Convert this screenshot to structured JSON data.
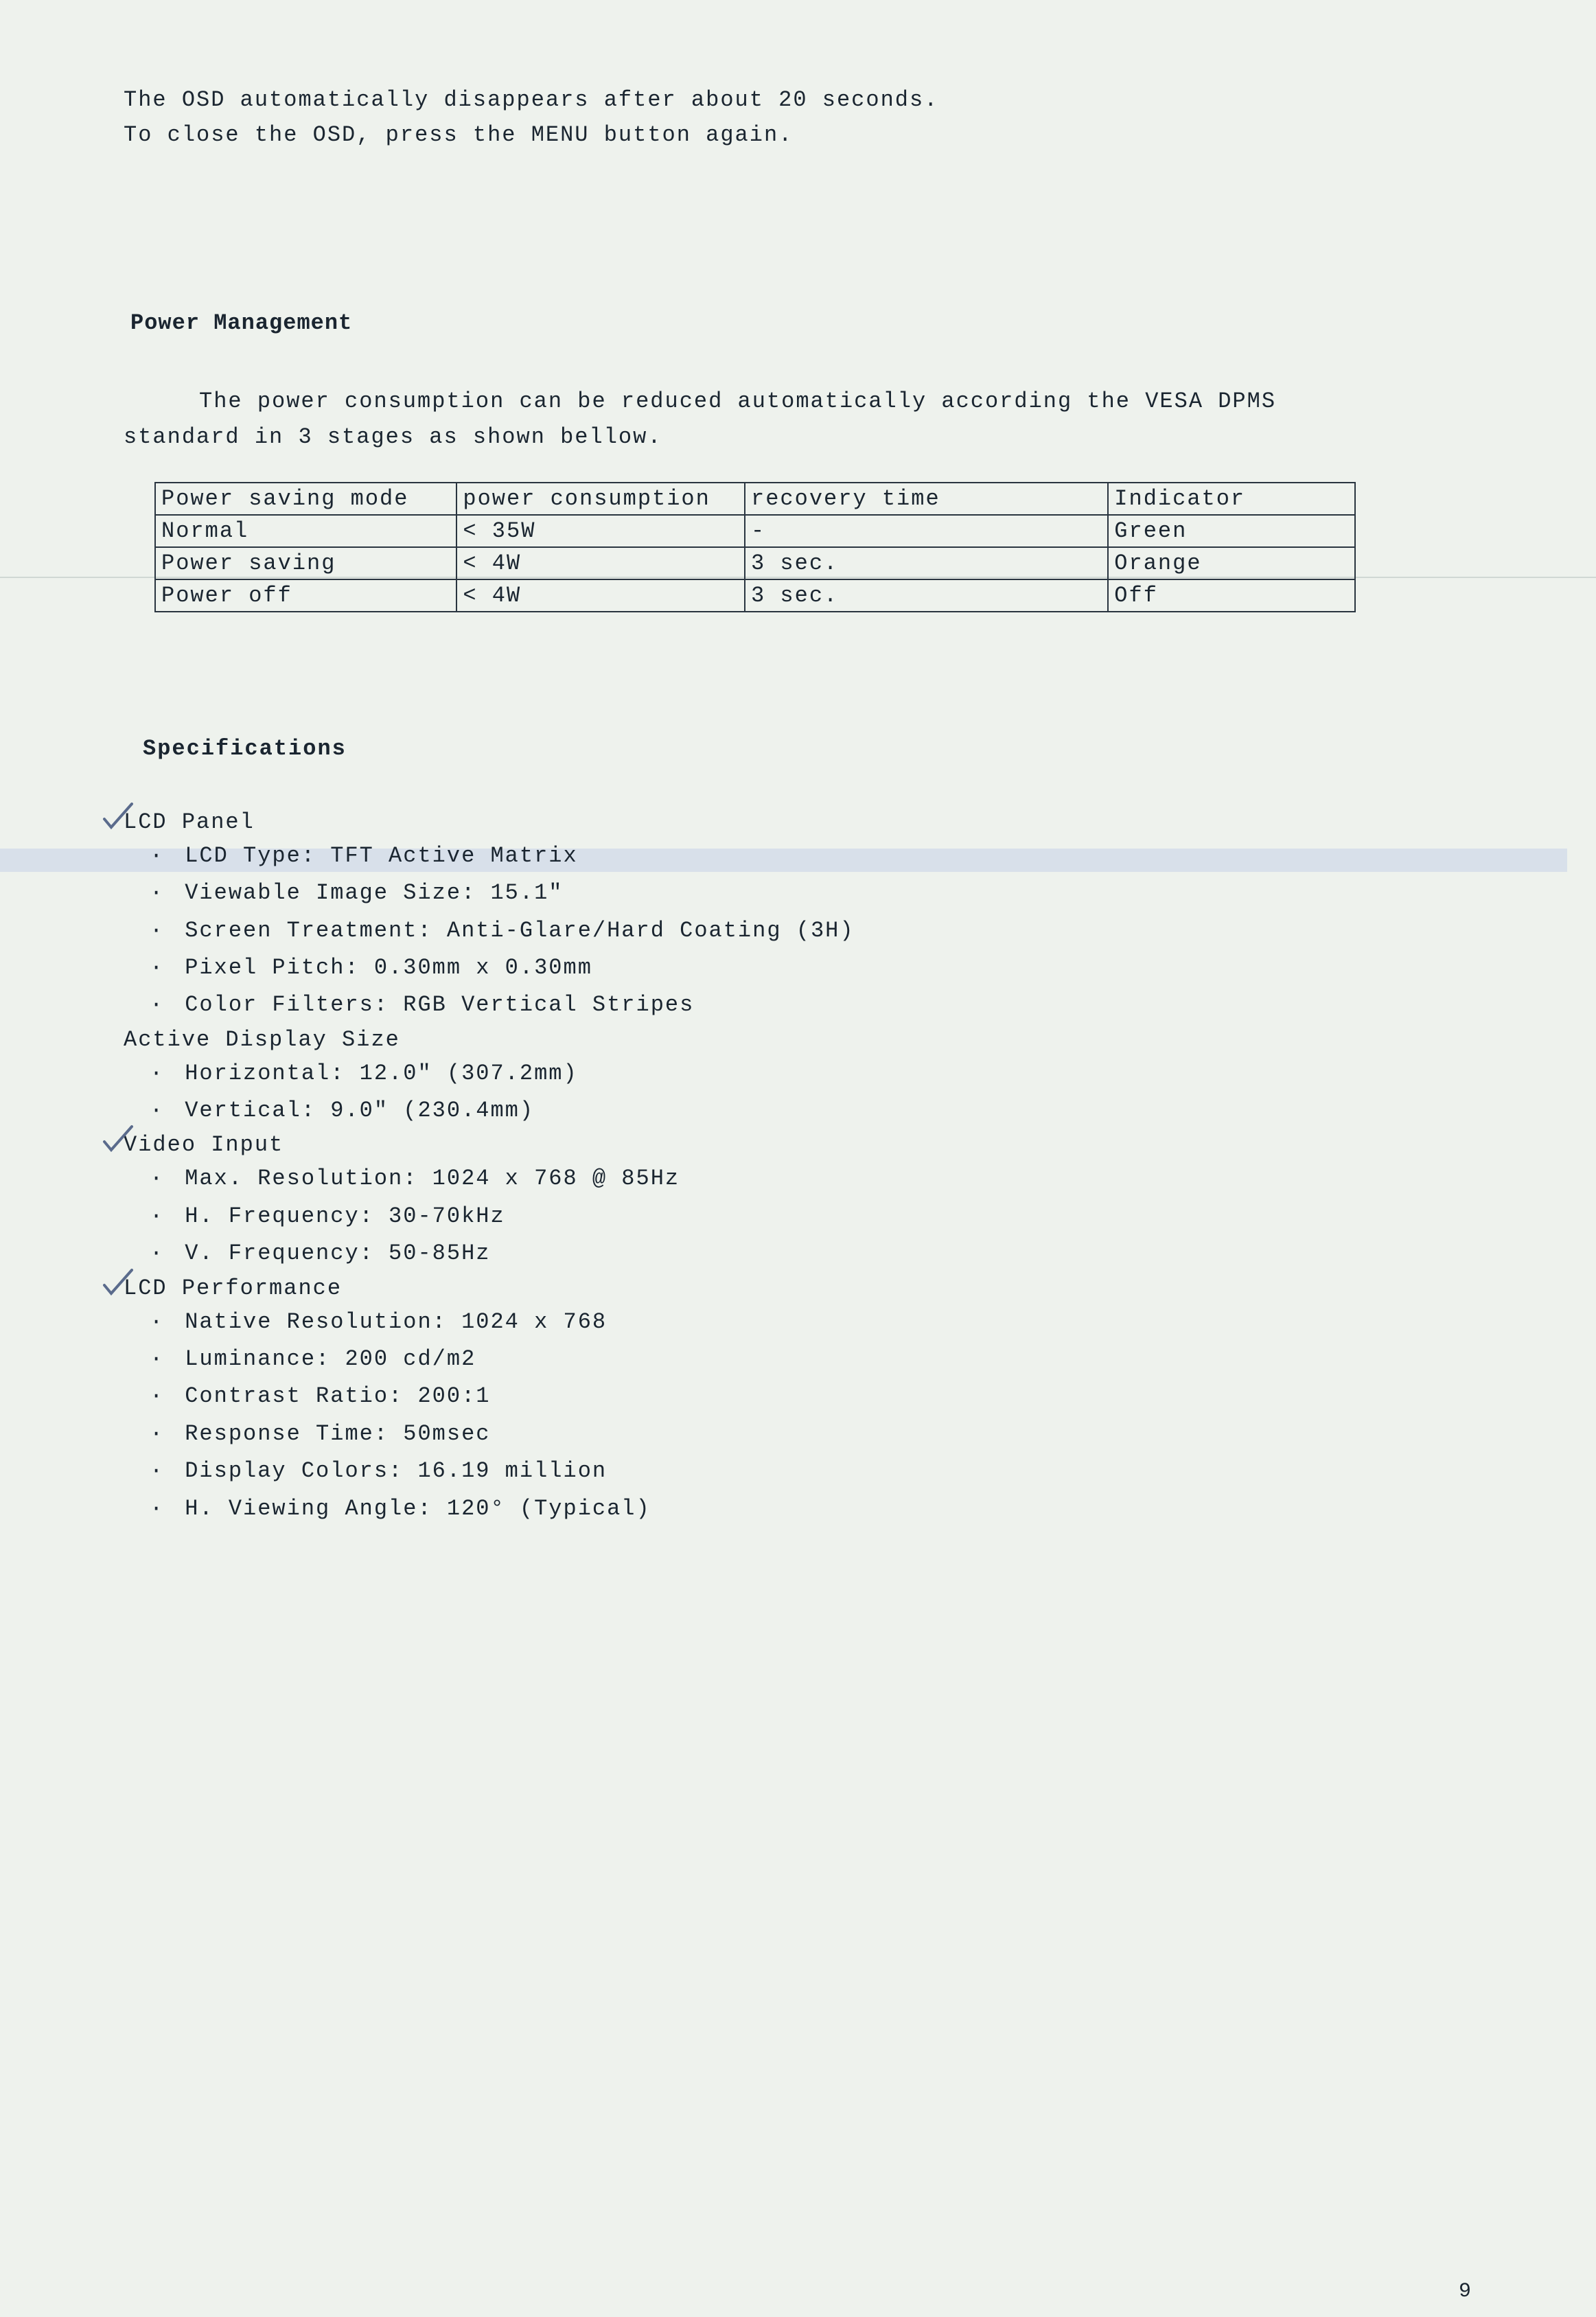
{
  "intro": {
    "line1": "The OSD automatically disappears after about 20 seconds.",
    "line2": "To close the OSD, press the MENU button again."
  },
  "power_management": {
    "heading": "Power Management",
    "description_line1": "The power consumption can be reduced automatically according the VESA DPMS",
    "description_line2": "standard in 3 stages as shown bellow.",
    "table": {
      "columns": [
        "Power saving mode",
        "power consumption",
        "recovery time",
        "Indicator"
      ],
      "col_widths": [
        "440px",
        "420px",
        "530px",
        "360px"
      ],
      "rows": [
        [
          "Normal",
          "< 35W",
          "-",
          "Green"
        ],
        [
          "Power saving",
          "< 4W",
          "3 sec.",
          "Orange"
        ],
        [
          "Power off",
          "< 4W",
          "3 sec.",
          "Off"
        ]
      ],
      "border_color": "#2a3540",
      "border_width": 2,
      "font_size": 32
    }
  },
  "specifications": {
    "heading": "Specifications",
    "sections": [
      {
        "title": "LCD Panel",
        "checked": true,
        "items": [
          "LCD Type: TFT Active Matrix",
          "Viewable Image Size: 15.1\"",
          "Screen Treatment: Anti-Glare/Hard Coating (3H)",
          "Pixel Pitch: 0.30mm x 0.30mm",
          "Color Filters: RGB Vertical Stripes"
        ]
      },
      {
        "title": "Active Display Size",
        "checked": false,
        "items": [
          "Horizontal: 12.0\" (307.2mm)",
          "Vertical: 9.0\" (230.4mm)"
        ]
      },
      {
        "title": "Video Input",
        "checked": true,
        "items": [
          "Max. Resolution: 1024 x 768 @ 85Hz",
          "H. Frequency: 30-70kHz",
          "V. Frequency: 50-85Hz"
        ]
      },
      {
        "title": "LCD Performance",
        "checked": true,
        "items": [
          "Native Resolution: 1024 x 768",
          "Luminance: 200 cd/m2",
          "Contrast Ratio: 200:1",
          "Response Time: 50msec",
          "Display Colors: 16.19 million",
          "H. Viewing Angle: 120°  (Typical)"
        ]
      }
    ]
  },
  "page_number": "9",
  "colors": {
    "background": "#eef2ed",
    "text": "#1a2530",
    "checkmark": "#5a6b8c",
    "highlight_band": "#d8e0ea",
    "rule_line": "#d0d8d4"
  },
  "typography": {
    "body_font": "Courier New",
    "body_size": 32,
    "letter_spacing": 2
  }
}
